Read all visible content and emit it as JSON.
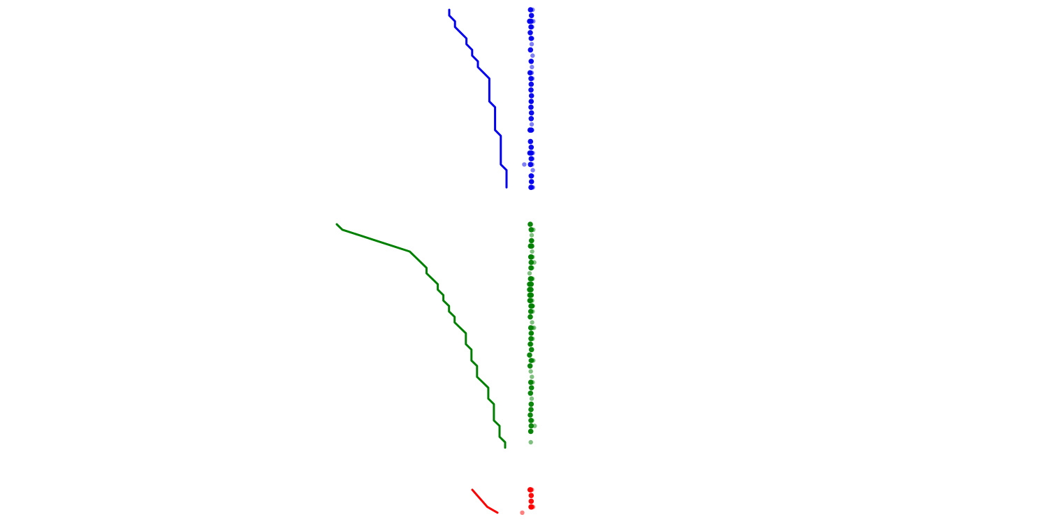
{
  "chart_data": {
    "type": "line",
    "title": "",
    "xlabel": "",
    "ylabel": "",
    "grid": false,
    "legend": "none",
    "axes_visible": false,
    "panels": [
      {
        "name": "",
        "color": "#0000ee",
        "row_range": [
          0,
          31
        ],
        "line": {
          "rows": [
            0,
            1,
            2,
            3,
            4,
            5,
            6,
            7,
            8,
            9,
            10,
            11,
            12,
            13,
            14,
            15,
            16,
            17,
            18,
            19,
            20,
            21,
            22,
            23,
            24,
            25,
            26,
            27,
            28,
            29,
            30,
            31
          ],
          "values": [
            0,
            0,
            1,
            1,
            2,
            3,
            3,
            4,
            4,
            5,
            5,
            6,
            7,
            7,
            7,
            7,
            7,
            8,
            8,
            8,
            8,
            8,
            9,
            9,
            9,
            9,
            9,
            9,
            10,
            10,
            10,
            10
          ]
        },
        "points_a": [
          {
            "row": 0,
            "value": 0.48
          },
          {
            "row": 1,
            "value": 0.52
          },
          {
            "row": 2,
            "value": 0.44
          },
          {
            "row": 2,
            "value": 0.5
          },
          {
            "row": 3,
            "value": 0.5
          },
          {
            "row": 4,
            "value": 0.47
          },
          {
            "row": 5,
            "value": 0.51
          },
          {
            "row": 7,
            "value": 0.48
          },
          {
            "row": 9,
            "value": 0.51
          },
          {
            "row": 11,
            "value": 0.46
          },
          {
            "row": 12,
            "value": 0.5
          },
          {
            "row": 13,
            "value": 0.51
          },
          {
            "row": 14,
            "value": 0.5
          },
          {
            "row": 15,
            "value": 0.52
          },
          {
            "row": 16,
            "value": 0.51
          },
          {
            "row": 17,
            "value": 0.5
          },
          {
            "row": 18,
            "value": 0.52
          },
          {
            "row": 19,
            "value": 0.51
          },
          {
            "row": 21,
            "value": 0.46
          },
          {
            "row": 21,
            "value": 0.51
          },
          {
            "row": 23,
            "value": 0.48
          },
          {
            "row": 24,
            "value": 0.51
          },
          {
            "row": 25,
            "value": 0.45
          },
          {
            "row": 25,
            "value": 0.51
          },
          {
            "row": 26,
            "value": 0.51
          },
          {
            "row": 27,
            "value": 0.48
          },
          {
            "row": 29,
            "value": 0.51
          },
          {
            "row": 30,
            "value": 0.52
          },
          {
            "row": 31,
            "value": 0.5
          }
        ],
        "points_b": [
          {
            "row": 0,
            "value": 0.57
          },
          {
            "row": 2,
            "value": 0.6
          },
          {
            "row": 3,
            "value": 0.55
          },
          {
            "row": 5,
            "value": 0.55
          },
          {
            "row": 6,
            "value": 0.53
          },
          {
            "row": 8,
            "value": 0.57
          },
          {
            "row": 9,
            "value": 0.49
          },
          {
            "row": 10,
            "value": 0.54
          },
          {
            "row": 11,
            "value": 0.53
          },
          {
            "row": 12,
            "value": 0.56
          },
          {
            "row": 16,
            "value": 0.5
          },
          {
            "row": 20,
            "value": 0.53
          },
          {
            "row": 21,
            "value": 0.55
          },
          {
            "row": 25,
            "value": 0.58
          },
          {
            "row": 26,
            "value": 0.56
          },
          {
            "row": 27,
            "value": 0.21
          },
          {
            "row": 27,
            "value": 0.55
          },
          {
            "row": 28,
            "value": 0.58
          },
          {
            "row": 29,
            "value": 0.55
          },
          {
            "row": 30,
            "value": 0.53
          },
          {
            "row": 31,
            "value": 0.55
          },
          {
            "row": 31,
            "value": 0.58
          }
        ]
      },
      {
        "name": "",
        "color": "#008000",
        "row_range": [
          0,
          41
        ],
        "line": {
          "rows": [
            0,
            1,
            2,
            3,
            4,
            5,
            6,
            7,
            8,
            9,
            10,
            11,
            12,
            13,
            14,
            15,
            16,
            17,
            18,
            19,
            20,
            21,
            22,
            23,
            24,
            25,
            26,
            27,
            28,
            29,
            30,
            31,
            32,
            33,
            34,
            35,
            36,
            37,
            38,
            39,
            40,
            41
          ],
          "values": [
            0,
            1,
            4,
            7,
            10,
            13,
            14,
            15,
            16,
            16,
            17,
            18,
            18,
            19,
            19,
            20,
            20,
            21,
            21,
            22,
            23,
            23,
            23,
            24,
            24,
            24,
            25,
            25,
            25,
            26,
            27,
            27,
            27,
            28,
            28,
            28,
            28,
            29,
            29,
            29,
            30,
            30
          ]
        },
        "points_a": [
          {
            "row": 0,
            "value": 0.47
          },
          {
            "row": 1,
            "value": 0.51
          },
          {
            "row": 3,
            "value": 0.52
          },
          {
            "row": 4,
            "value": 0.48
          },
          {
            "row": 4,
            "value": 0.53
          },
          {
            "row": 6,
            "value": 0.49
          },
          {
            "row": 6,
            "value": 0.51
          },
          {
            "row": 7,
            "value": 0.51
          },
          {
            "row": 8,
            "value": 0.5
          },
          {
            "row": 10,
            "value": 0.48
          },
          {
            "row": 10,
            "value": 0.51
          },
          {
            "row": 11,
            "value": 0.44
          },
          {
            "row": 11,
            "value": 0.51
          },
          {
            "row": 12,
            "value": 0.44
          },
          {
            "row": 12,
            "value": 0.5
          },
          {
            "row": 13,
            "value": 0.45
          },
          {
            "row": 13,
            "value": 0.51
          },
          {
            "row": 14,
            "value": 0.45
          },
          {
            "row": 14,
            "value": 0.48
          },
          {
            "row": 15,
            "value": 0.5
          },
          {
            "row": 15,
            "value": 0.54
          },
          {
            "row": 16,
            "value": 0.49
          },
          {
            "row": 17,
            "value": 0.47
          },
          {
            "row": 19,
            "value": 0.49
          },
          {
            "row": 20,
            "value": 0.51
          },
          {
            "row": 21,
            "value": 0.5
          },
          {
            "row": 22,
            "value": 0.47
          },
          {
            "row": 23,
            "value": 0.52
          },
          {
            "row": 24,
            "value": 0.44
          },
          {
            "row": 25,
            "value": 0.51
          },
          {
            "row": 26,
            "value": 0.46
          },
          {
            "row": 29,
            "value": 0.49
          },
          {
            "row": 30,
            "value": 0.52
          },
          {
            "row": 31,
            "value": 0.48
          },
          {
            "row": 33,
            "value": 0.51
          },
          {
            "row": 34,
            "value": 0.5
          },
          {
            "row": 35,
            "value": 0.47
          },
          {
            "row": 36,
            "value": 0.5
          },
          {
            "row": 37,
            "value": 0.51
          },
          {
            "row": 38,
            "value": 0.49
          }
        ],
        "points_b": [
          {
            "row": 1,
            "value": 0.6
          },
          {
            "row": 2,
            "value": 0.53
          },
          {
            "row": 3,
            "value": 0.55
          },
          {
            "row": 5,
            "value": 0.55
          },
          {
            "row": 6,
            "value": 0.57
          },
          {
            "row": 7,
            "value": 0.64
          },
          {
            "row": 8,
            "value": 0.55
          },
          {
            "row": 9,
            "value": 0.44
          },
          {
            "row": 10,
            "value": 0.57
          },
          {
            "row": 14,
            "value": 0.55
          },
          {
            "row": 15,
            "value": 0.58
          },
          {
            "row": 16,
            "value": 0.57
          },
          {
            "row": 18,
            "value": 0.55
          },
          {
            "row": 19,
            "value": 0.56
          },
          {
            "row": 19,
            "value": 0.63
          },
          {
            "row": 20,
            "value": 0.53
          },
          {
            "row": 21,
            "value": 0.57
          },
          {
            "row": 22,
            "value": 0.51
          },
          {
            "row": 25,
            "value": 0.55
          },
          {
            "row": 25,
            "value": 0.6
          },
          {
            "row": 27,
            "value": 0.49
          },
          {
            "row": 28,
            "value": 0.54
          },
          {
            "row": 29,
            "value": 0.57
          },
          {
            "row": 32,
            "value": 0.53
          },
          {
            "row": 36,
            "value": 0.55
          },
          {
            "row": 37,
            "value": 0.66
          },
          {
            "row": 38,
            "value": 0.47
          },
          {
            "row": 40,
            "value": 0.49
          }
        ]
      },
      {
        "name": "",
        "color": "#ff0000",
        "row_range": [
          0,
          4
        ],
        "line": {
          "rows": [
            0,
            1,
            2,
            3,
            4
          ],
          "values": [
            0,
            1,
            2,
            3,
            5
          ]
        },
        "points_a": [
          {
            "row": 0,
            "value": 0.46
          },
          {
            "row": 0,
            "value": 0.48
          },
          {
            "row": 1,
            "value": 0.51
          },
          {
            "row": 2,
            "value": 0.51
          },
          {
            "row": 3,
            "value": 0.5
          },
          {
            "row": 3,
            "value": 0.52
          }
        ],
        "points_b": [
          {
            "row": 0,
            "value": 0.54
          },
          {
            "row": 3,
            "value": 0.59
          },
          {
            "row": 4,
            "value": 0.12
          }
        ]
      }
    ]
  }
}
